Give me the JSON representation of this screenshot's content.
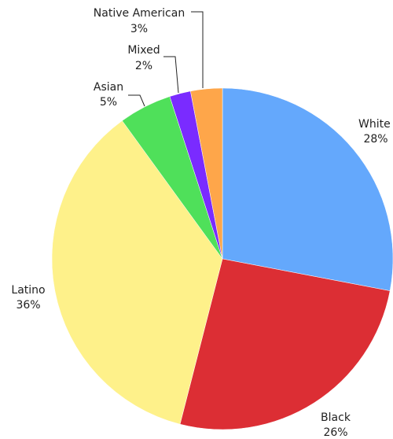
{
  "chart_data": {
    "type": "pie",
    "title": "",
    "start": "12 o'clock, clockwise",
    "slices": [
      {
        "label": "White",
        "value": 28,
        "pct_label": "28%",
        "color": "#64a8fc"
      },
      {
        "label": "Black",
        "value": 26,
        "pct_label": "26%",
        "color": "#dc2e34"
      },
      {
        "label": "Latino",
        "value": 36,
        "pct_label": "36%",
        "color": "#fef18a"
      },
      {
        "label": "Asian",
        "value": 5,
        "pct_label": "5%",
        "color": "#4fe05a"
      },
      {
        "label": "Mixed",
        "value": 2,
        "pct_label": "2%",
        "color": "#7a2bff"
      },
      {
        "label": "Native American",
        "value": 3,
        "pct_label": "3%",
        "color": "#fea64a"
      }
    ]
  }
}
